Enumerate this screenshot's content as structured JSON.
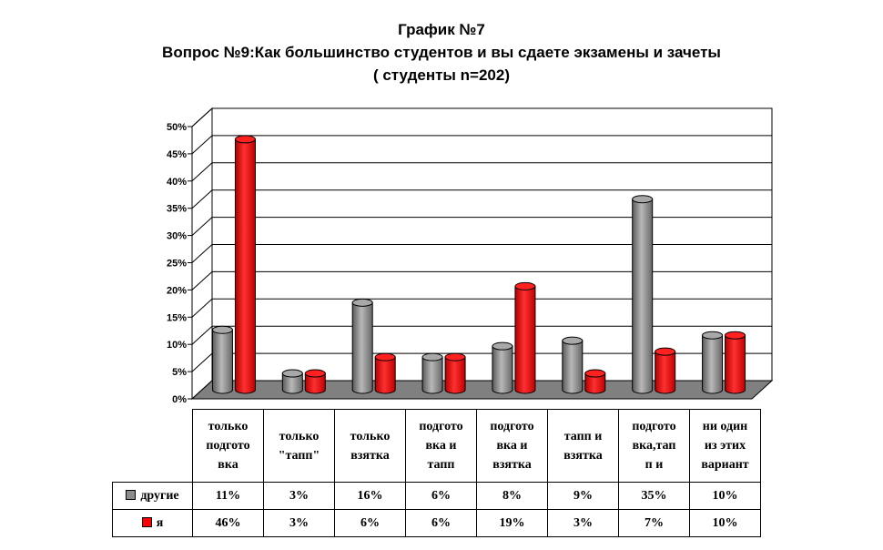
{
  "title": {
    "line1": "График №7",
    "line2": "Вопрос №9:Как большинство студентов и вы сдаете экзамены и зачеты",
    "line3": "( студенты n=202)"
  },
  "chart_data": {
    "type": "bar",
    "categories": [
      "только подгото вка",
      "только \"тапп\"",
      "только взятка",
      "подгото вка и тапп",
      "подгото вка и взятка",
      "тапп и взятка",
      "подгото вка,тап п и",
      "ни один из этих вариант"
    ],
    "category_lines": [
      [
        "только",
        "подгото",
        "вка"
      ],
      [
        "только",
        "\"тапп\""
      ],
      [
        "только",
        "взятка"
      ],
      [
        "подгото",
        "вка и",
        "тапп"
      ],
      [
        "подгото",
        "вка и",
        "взятка"
      ],
      [
        "тапп и",
        "взятка"
      ],
      [
        "подгото",
        "вка,тап",
        "п и"
      ],
      [
        "ни один",
        "из этих",
        "вариант"
      ]
    ],
    "series": [
      {
        "name": "другие",
        "color": "#8c8c8c",
        "values": [
          11,
          3,
          16,
          6,
          8,
          9,
          35,
          10
        ],
        "labels": [
          "11%",
          "3%",
          "16%",
          "6%",
          "8%",
          "9%",
          "35%",
          "10%"
        ]
      },
      {
        "name": "я",
        "color": "#ff0000",
        "values": [
          46,
          3,
          6,
          6,
          19,
          3,
          7,
          10
        ],
        "labels": [
          "46%",
          "3%",
          "6%",
          "6%",
          "19%",
          "3%",
          "7%",
          "10%"
        ]
      }
    ],
    "ylim": [
      0,
      50
    ],
    "y_ticks": [
      "0%",
      "5%",
      "10%",
      "15%",
      "20%",
      "25%",
      "30%",
      "35%",
      "40%",
      "45%",
      "50%"
    ],
    "grid": true,
    "legend": "data-table-left"
  }
}
